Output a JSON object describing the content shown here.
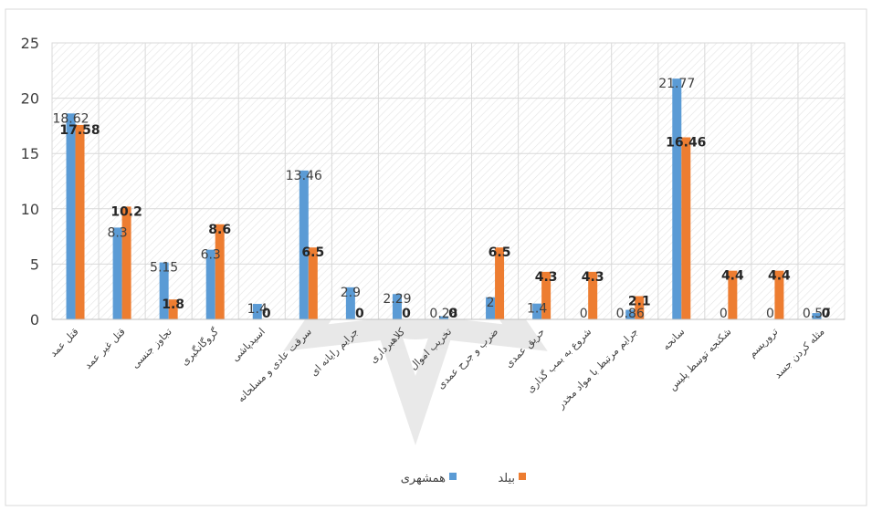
{
  "chart_data": {
    "type": "bar",
    "ylim": [
      0,
      25
    ],
    "yticks": [
      0,
      5,
      10,
      15,
      20,
      25
    ],
    "grid": "vertical hatched plot area",
    "legend_position": "bottom",
    "categories": [
      "قتل عمد",
      "قتل غیر عمد",
      "تجاوز جنسی",
      "گروگانگیری",
      "اسیدپاشی",
      "سرقت عادی و مسلحانه",
      "جرایم رایانه ای",
      "کلاهبرداری",
      "تخریب اموال",
      "ضرب و جرح عمدی",
      "حریق عمدی",
      "شروع به بمب گذاری",
      "جرایم مرتبط با مواد مخدر",
      "سانحه",
      "شکنجه توسط پلیس",
      "تروریسم",
      "مثله کردن جسد"
    ],
    "series": [
      {
        "name": "همشهری",
        "color": "#5b9bd5",
        "values": [
          18.62,
          8.3,
          5.15,
          6.3,
          1.4,
          13.46,
          2.9,
          2.29,
          0.28,
          2,
          1.43,
          0,
          0.86,
          21.77,
          0,
          0,
          0.57
        ],
        "labels": [
          "18.62",
          "8.3",
          "5.15",
          "6.3",
          "1.4",
          "13.46",
          "2.9",
          "2.29",
          "0.28",
          "2",
          "1.4",
          "0",
          "0.86",
          "21.77",
          "0",
          "0",
          "0.57"
        ]
      },
      {
        "name": "بیلد",
        "color": "#ed7d31",
        "values": [
          17.58,
          10.2,
          1.8,
          8.6,
          0,
          6.5,
          0,
          0,
          0,
          6.5,
          4.3,
          4.3,
          2.1,
          16.46,
          4.4,
          4.4,
          0
        ],
        "labels": [
          "17.58",
          "10.2",
          "1.8",
          "8.6",
          "0",
          "6.5",
          "0",
          "0",
          "0",
          "6.5",
          "4.3",
          "4.3",
          "2.1",
          "16.46",
          "4.4",
          "4.4",
          "0"
        ]
      }
    ]
  }
}
